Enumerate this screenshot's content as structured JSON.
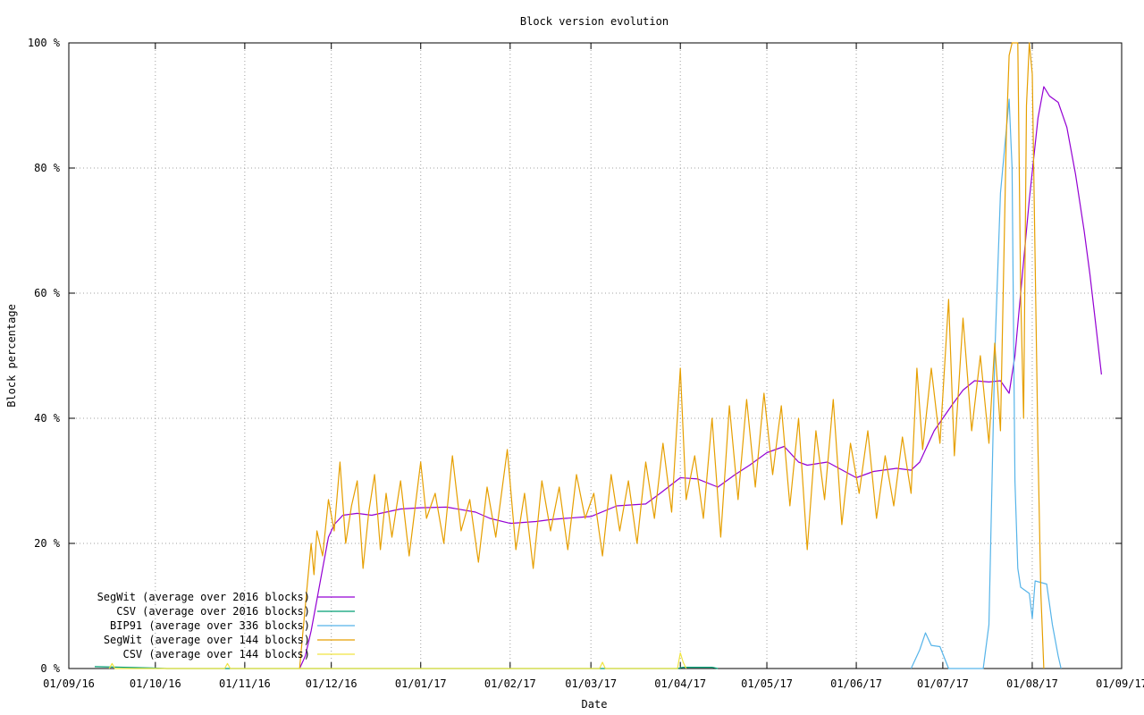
{
  "chart_data": {
    "type": "line",
    "title": "Block version evolution",
    "xlabel": "Date",
    "ylabel": "Block percentage",
    "ylim": [
      0,
      100
    ],
    "xlim": [
      "2016-09-01",
      "2017-09-01"
    ],
    "grid": true,
    "legend_position": "bottom-left",
    "x_ticks": [
      {
        "date": "2016-09-01",
        "label": "01/09/16"
      },
      {
        "date": "2016-10-01",
        "label": "01/10/16"
      },
      {
        "date": "2016-11-01",
        "label": "01/11/16"
      },
      {
        "date": "2016-12-01",
        "label": "01/12/16"
      },
      {
        "date": "2017-01-01",
        "label": "01/01/17"
      },
      {
        "date": "2017-02-01",
        "label": "01/02/17"
      },
      {
        "date": "2017-03-01",
        "label": "01/03/17"
      },
      {
        "date": "2017-04-01",
        "label": "01/04/17"
      },
      {
        "date": "2017-05-01",
        "label": "01/05/17"
      },
      {
        "date": "2017-06-01",
        "label": "01/06/17"
      },
      {
        "date": "2017-07-01",
        "label": "01/07/17"
      },
      {
        "date": "2017-08-01",
        "label": "01/08/17"
      },
      {
        "date": "2017-09-01",
        "label": "01/09/17"
      }
    ],
    "y_ticks": [
      {
        "value": 0,
        "label": "0 %"
      },
      {
        "value": 20,
        "label": "20 %"
      },
      {
        "value": 40,
        "label": "40 %"
      },
      {
        "value": 60,
        "label": "60 %"
      },
      {
        "value": 80,
        "label": "80 %"
      },
      {
        "value": 100,
        "label": "100 %"
      }
    ],
    "series": [
      {
        "name": "SegWit (average over 2016 blocks)",
        "color": "#9400d3",
        "points": [
          [
            "2016-11-20",
            0
          ],
          [
            "2016-11-22",
            2
          ],
          [
            "2016-11-24",
            6
          ],
          [
            "2016-11-26",
            11
          ],
          [
            "2016-11-28",
            16
          ],
          [
            "2016-11-30",
            21
          ],
          [
            "2016-12-02",
            23
          ],
          [
            "2016-12-05",
            24.5
          ],
          [
            "2016-12-10",
            24.8
          ],
          [
            "2016-12-15",
            24.5
          ],
          [
            "2016-12-20",
            25
          ],
          [
            "2016-12-25",
            25.5
          ],
          [
            "2017-01-01",
            25.7
          ],
          [
            "2017-01-10",
            25.8
          ],
          [
            "2017-01-20",
            25
          ],
          [
            "2017-01-25",
            24
          ],
          [
            "2017-02-01",
            23.2
          ],
          [
            "2017-02-10",
            23.5
          ],
          [
            "2017-02-15",
            23.8
          ],
          [
            "2017-02-20",
            24
          ],
          [
            "2017-03-01",
            24.3
          ],
          [
            "2017-03-10",
            26
          ],
          [
            "2017-03-20",
            26.3
          ],
          [
            "2017-03-25",
            28
          ],
          [
            "2017-04-01",
            30.5
          ],
          [
            "2017-04-07",
            30.3
          ],
          [
            "2017-04-14",
            29
          ],
          [
            "2017-04-20",
            31
          ],
          [
            "2017-04-25",
            32.5
          ],
          [
            "2017-05-01",
            34.5
          ],
          [
            "2017-05-07",
            35.5
          ],
          [
            "2017-05-12",
            33
          ],
          [
            "2017-05-15",
            32.5
          ],
          [
            "2017-05-22",
            33
          ],
          [
            "2017-06-01",
            30.5
          ],
          [
            "2017-06-07",
            31.5
          ],
          [
            "2017-06-15",
            32
          ],
          [
            "2017-06-20",
            31.7
          ],
          [
            "2017-06-23",
            33
          ],
          [
            "2017-06-28",
            38
          ],
          [
            "2017-07-04",
            42
          ],
          [
            "2017-07-08",
            44.5
          ],
          [
            "2017-07-12",
            46
          ],
          [
            "2017-07-17",
            45.8
          ],
          [
            "2017-07-21",
            46
          ],
          [
            "2017-07-24",
            44
          ],
          [
            "2017-07-26",
            50
          ],
          [
            "2017-07-28",
            60
          ],
          [
            "2017-07-31",
            75
          ],
          [
            "2017-08-03",
            88
          ],
          [
            "2017-08-05",
            93
          ],
          [
            "2017-08-07",
            91.5
          ],
          [
            "2017-08-10",
            90.5
          ],
          [
            "2017-08-13",
            86.5
          ],
          [
            "2017-08-16",
            79
          ],
          [
            "2017-08-19",
            70
          ],
          [
            "2017-08-21",
            63
          ],
          [
            "2017-08-23",
            55
          ],
          [
            "2017-08-25",
            47
          ]
        ]
      },
      {
        "name": "CSV (average over 2016 blocks)",
        "color": "#009e73",
        "points": [
          [
            "2016-09-10",
            0.3
          ],
          [
            "2016-09-20",
            0.2
          ],
          [
            "2016-09-30",
            0.1
          ],
          [
            "2016-10-05",
            0
          ],
          [
            "2017-03-31",
            0
          ],
          [
            "2017-04-02",
            0.2
          ],
          [
            "2017-04-12",
            0.2
          ],
          [
            "2017-04-14",
            0
          ]
        ]
      },
      {
        "name": "BIP91 (average over 336 blocks)",
        "color": "#56b4e9",
        "points": [
          [
            "2017-06-20",
            0
          ],
          [
            "2017-06-23",
            3
          ],
          [
            "2017-06-25",
            5.7
          ],
          [
            "2017-06-27",
            3.7
          ],
          [
            "2017-06-30",
            3.5
          ],
          [
            "2017-07-03",
            0
          ],
          [
            "2017-07-15",
            0
          ],
          [
            "2017-07-17",
            7
          ],
          [
            "2017-07-19",
            50
          ],
          [
            "2017-07-21",
            76
          ],
          [
            "2017-07-24",
            91
          ],
          [
            "2017-07-25",
            80
          ],
          [
            "2017-07-26",
            30
          ],
          [
            "2017-07-27",
            16
          ],
          [
            "2017-07-28",
            13
          ],
          [
            "2017-07-31",
            12
          ],
          [
            "2017-08-01",
            8
          ],
          [
            "2017-08-02",
            14
          ],
          [
            "2017-08-06",
            13.5
          ],
          [
            "2017-08-08",
            7
          ],
          [
            "2017-08-10",
            2
          ],
          [
            "2017-08-11",
            0
          ]
        ]
      },
      {
        "name": "SegWit (average over 144 blocks)",
        "color": "#e69f00",
        "points": [
          [
            "2016-11-20",
            0
          ],
          [
            "2016-11-22",
            10
          ],
          [
            "2016-11-24",
            20
          ],
          [
            "2016-11-25",
            15
          ],
          [
            "2016-11-26",
            22
          ],
          [
            "2016-11-28",
            18
          ],
          [
            "2016-11-30",
            27
          ],
          [
            "2016-12-02",
            22
          ],
          [
            "2016-12-04",
            33
          ],
          [
            "2016-12-06",
            20
          ],
          [
            "2016-12-08",
            26
          ],
          [
            "2016-12-10",
            30
          ],
          [
            "2016-12-12",
            16
          ],
          [
            "2016-12-14",
            25
          ],
          [
            "2016-12-16",
            31
          ],
          [
            "2016-12-18",
            19
          ],
          [
            "2016-12-20",
            28
          ],
          [
            "2016-12-22",
            21
          ],
          [
            "2016-12-25",
            30
          ],
          [
            "2016-12-28",
            18
          ],
          [
            "2017-01-01",
            33
          ],
          [
            "2017-01-03",
            24
          ],
          [
            "2017-01-06",
            28
          ],
          [
            "2017-01-09",
            20
          ],
          [
            "2017-01-12",
            34
          ],
          [
            "2017-01-15",
            22
          ],
          [
            "2017-01-18",
            27
          ],
          [
            "2017-01-21",
            17
          ],
          [
            "2017-01-24",
            29
          ],
          [
            "2017-01-27",
            21
          ],
          [
            "2017-01-31",
            35
          ],
          [
            "2017-02-03",
            19
          ],
          [
            "2017-02-06",
            28
          ],
          [
            "2017-02-09",
            16
          ],
          [
            "2017-02-12",
            30
          ],
          [
            "2017-02-15",
            22
          ],
          [
            "2017-02-18",
            29
          ],
          [
            "2017-02-21",
            19
          ],
          [
            "2017-02-24",
            31
          ],
          [
            "2017-02-27",
            24
          ],
          [
            "2017-03-02",
            28
          ],
          [
            "2017-03-05",
            18
          ],
          [
            "2017-03-08",
            31
          ],
          [
            "2017-03-11",
            22
          ],
          [
            "2017-03-14",
            30
          ],
          [
            "2017-03-17",
            20
          ],
          [
            "2017-03-20",
            33
          ],
          [
            "2017-03-23",
            24
          ],
          [
            "2017-03-26",
            36
          ],
          [
            "2017-03-29",
            25
          ],
          [
            "2017-04-01",
            48
          ],
          [
            "2017-04-03",
            27
          ],
          [
            "2017-04-06",
            34
          ],
          [
            "2017-04-09",
            24
          ],
          [
            "2017-04-12",
            40
          ],
          [
            "2017-04-15",
            21
          ],
          [
            "2017-04-18",
            42
          ],
          [
            "2017-04-21",
            27
          ],
          [
            "2017-04-24",
            43
          ],
          [
            "2017-04-27",
            29
          ],
          [
            "2017-04-30",
            44
          ],
          [
            "2017-05-03",
            31
          ],
          [
            "2017-05-06",
            42
          ],
          [
            "2017-05-09",
            26
          ],
          [
            "2017-05-12",
            40
          ],
          [
            "2017-05-15",
            19
          ],
          [
            "2017-05-18",
            38
          ],
          [
            "2017-05-21",
            27
          ],
          [
            "2017-05-24",
            43
          ],
          [
            "2017-05-27",
            23
          ],
          [
            "2017-05-30",
            36
          ],
          [
            "2017-06-02",
            28
          ],
          [
            "2017-06-05",
            38
          ],
          [
            "2017-06-08",
            24
          ],
          [
            "2017-06-11",
            34
          ],
          [
            "2017-06-14",
            26
          ],
          [
            "2017-06-17",
            37
          ],
          [
            "2017-06-20",
            28
          ],
          [
            "2017-06-22",
            48
          ],
          [
            "2017-06-24",
            35
          ],
          [
            "2017-06-27",
            48
          ],
          [
            "2017-06-30",
            36
          ],
          [
            "2017-07-03",
            59
          ],
          [
            "2017-07-05",
            34
          ],
          [
            "2017-07-08",
            56
          ],
          [
            "2017-07-11",
            38
          ],
          [
            "2017-07-14",
            50
          ],
          [
            "2017-07-17",
            36
          ],
          [
            "2017-07-19",
            52
          ],
          [
            "2017-07-21",
            38
          ],
          [
            "2017-07-23",
            85
          ],
          [
            "2017-07-24",
            98
          ],
          [
            "2017-07-25",
            100
          ],
          [
            "2017-07-27",
            100
          ],
          [
            "2017-07-28",
            60
          ],
          [
            "2017-07-29",
            40
          ],
          [
            "2017-07-30",
            90
          ],
          [
            "2017-07-31",
            100
          ],
          [
            "2017-08-01",
            95
          ],
          [
            "2017-08-02",
            65
          ],
          [
            "2017-08-03",
            35
          ],
          [
            "2017-08-04",
            12
          ],
          [
            "2017-08-05",
            0
          ]
        ]
      },
      {
        "name": "CSV (average over 144 blocks)",
        "color": "#f0e442",
        "points": [
          [
            "2016-09-15",
            0
          ],
          [
            "2016-09-16",
            0.8
          ],
          [
            "2016-09-17",
            0
          ],
          [
            "2016-10-25",
            0
          ],
          [
            "2016-10-26",
            0.8
          ],
          [
            "2016-10-27",
            0
          ],
          [
            "2017-03-04",
            0
          ],
          [
            "2017-03-05",
            1
          ],
          [
            "2017-03-06",
            0
          ],
          [
            "2017-03-31",
            0
          ],
          [
            "2017-04-01",
            2.5
          ],
          [
            "2017-04-02",
            1
          ],
          [
            "2017-04-03",
            0
          ]
        ]
      }
    ]
  }
}
